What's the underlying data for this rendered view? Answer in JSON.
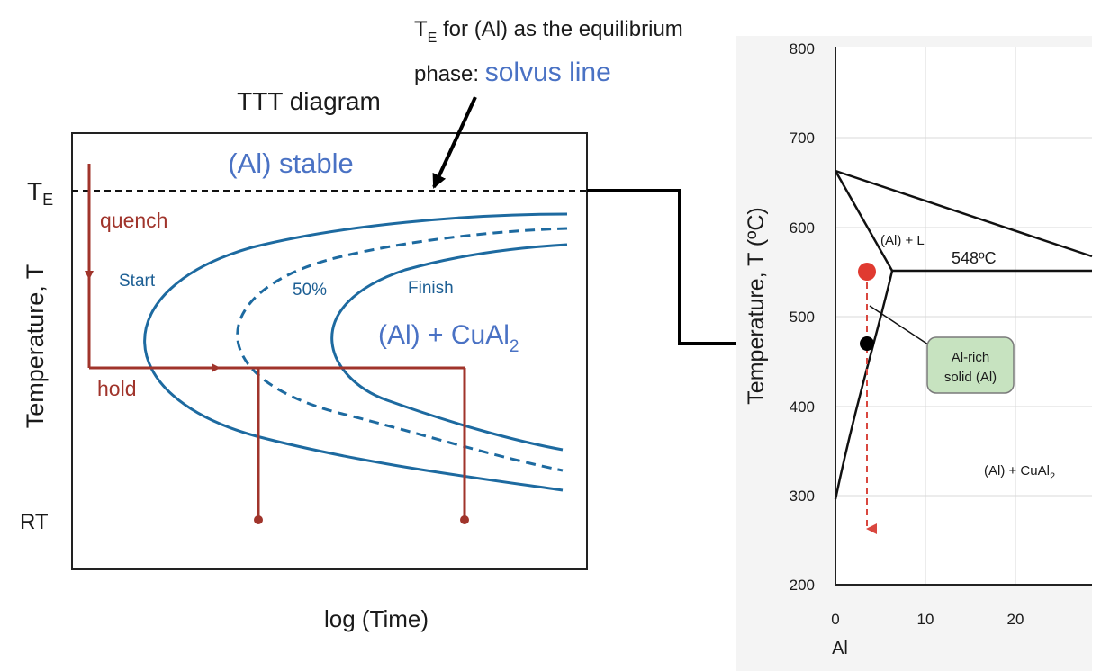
{
  "ttt": {
    "title": "TTT diagram",
    "ylabel": "Temperature, T",
    "xlabel": "log (Time)",
    "te_label": "T",
    "te_sub": "E",
    "rt_label": "RT",
    "stable_label": "(Al)  stable",
    "quench_label": "quench",
    "hold_label": "hold",
    "start_label": "Start",
    "fifty_label": "50%",
    "finish_label": "Finish",
    "region_label": "(Al) + CuAl",
    "region_sub": "2"
  },
  "annotation": {
    "line1_a": "T",
    "line1_sub": "E",
    "line1_b": " for (Al) as the equilibrium",
    "line2_a": "phase:  ",
    "line2_b": "solvus line"
  },
  "phase": {
    "ylabel": "Temperature, T  (ºC)",
    "y_ticks": [
      "800",
      "700",
      "600",
      "500",
      "400",
      "300",
      "200"
    ],
    "x_ticks": [
      "0",
      "10",
      "20"
    ],
    "x_element": "Al",
    "liquid_region_label": "(Al) + L",
    "eutectic_label": "548ºC",
    "region_label": "(Al) + CuAl",
    "region_sub": "2",
    "callout_line1": "Al-rich",
    "callout_line2": "solid (Al)"
  },
  "colors": {
    "curve_blue": "#1d6aa0",
    "label_blue": "#4a72c4",
    "path_red": "#a0342b",
    "dot_red": "#e03a30",
    "callout_green": "#c7e3c0"
  }
}
